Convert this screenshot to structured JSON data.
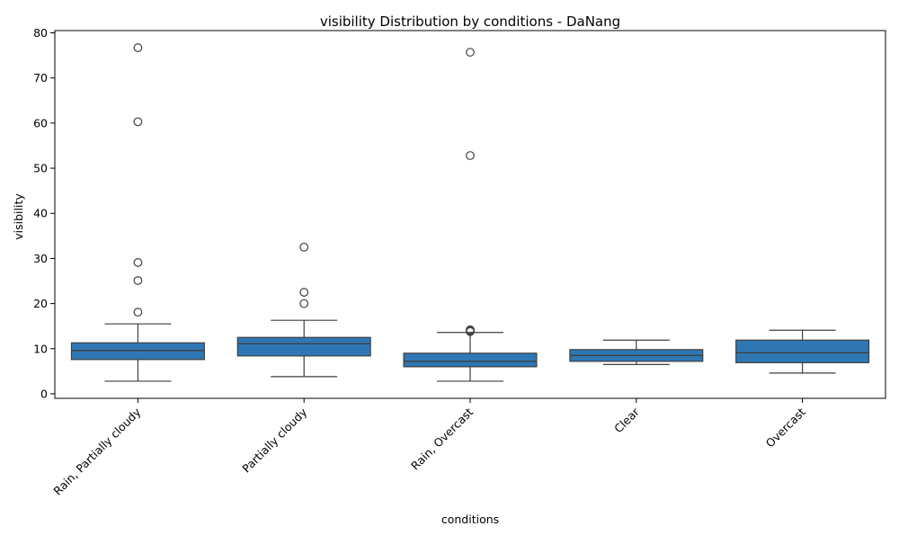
{
  "chart_data": {
    "type": "box",
    "title": "visibility Distribution by conditions - DaNang",
    "xlabel": "conditions",
    "ylabel": "visibility",
    "ylim": [
      -1,
      80.5
    ],
    "yticks": [
      0,
      10,
      20,
      30,
      40,
      50,
      60,
      70,
      80
    ],
    "grid": false,
    "box_color": "#2f77b4",
    "line_color": "#3f3f3f",
    "categories": [
      "Rain, Partially cloudy",
      "Partially cloudy",
      "Rain, Overcast",
      "Clear",
      "Overcast"
    ],
    "boxes": [
      {
        "whisker_low": 2.8,
        "q1": 7.6,
        "median": 9.6,
        "q3": 11.3,
        "whisker_high": 15.5,
        "outliers": [
          18.1,
          25.1,
          29.1,
          60.3,
          76.7
        ]
      },
      {
        "whisker_low": 3.8,
        "q1": 8.4,
        "median": 11.1,
        "q3": 12.5,
        "whisker_high": 16.3,
        "outliers": [
          20.0,
          22.5,
          32.5
        ]
      },
      {
        "whisker_low": 2.8,
        "q1": 6.0,
        "median": 7.2,
        "q3": 9.0,
        "whisker_high": 13.6,
        "outliers": [
          13.8,
          14.0,
          14.2,
          52.8,
          75.7
        ]
      },
      {
        "whisker_low": 6.5,
        "q1": 7.2,
        "median": 8.5,
        "q3": 9.8,
        "whisker_high": 11.9,
        "outliers": []
      },
      {
        "whisker_low": 4.6,
        "q1": 6.9,
        "median": 9.1,
        "q3": 11.9,
        "whisker_high": 14.1,
        "outliers": []
      }
    ]
  }
}
